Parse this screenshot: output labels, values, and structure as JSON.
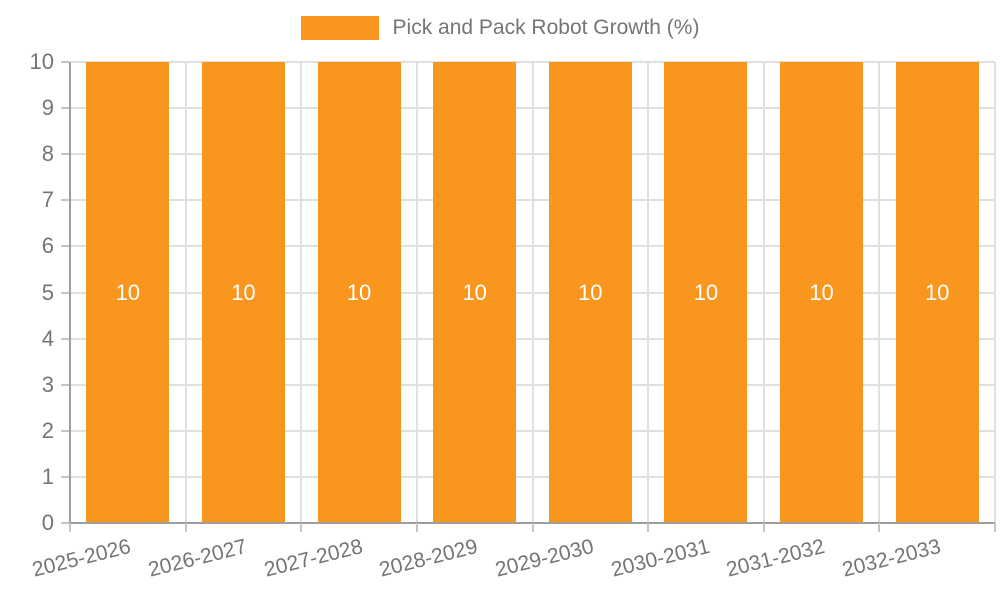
{
  "legend": {
    "label": "Pick and Pack Robot Growth (%)"
  },
  "colors": {
    "bar": "#F8961E",
    "axis": "#9E9E9E",
    "grid": "#E0E0E0",
    "tick": "#C4C4C4",
    "text": "#757575",
    "bar_label": "#FFFFFF",
    "background": "#FFFFFF"
  },
  "chart_data": {
    "type": "bar",
    "title": "",
    "xlabel": "",
    "ylabel": "",
    "categories": [
      "2025-2026",
      "2026-2027",
      "2027-2028",
      "2028-2029",
      "2029-2030",
      "2030-2031",
      "2031-2032",
      "2032-2033"
    ],
    "series": [
      {
        "name": "Pick and Pack Robot Growth (%)",
        "values": [
          10,
          10,
          10,
          10,
          10,
          10,
          10,
          10
        ]
      }
    ],
    "bar_value_labels": [
      "10",
      "10",
      "10",
      "10",
      "10",
      "10",
      "10",
      "10"
    ],
    "ylim": [
      0,
      10
    ],
    "yticks": [
      0,
      1,
      2,
      3,
      4,
      5,
      6,
      7,
      8,
      9,
      10
    ],
    "grid": true,
    "legend_position": "top-center",
    "x_tick_rotation_deg": -14
  }
}
